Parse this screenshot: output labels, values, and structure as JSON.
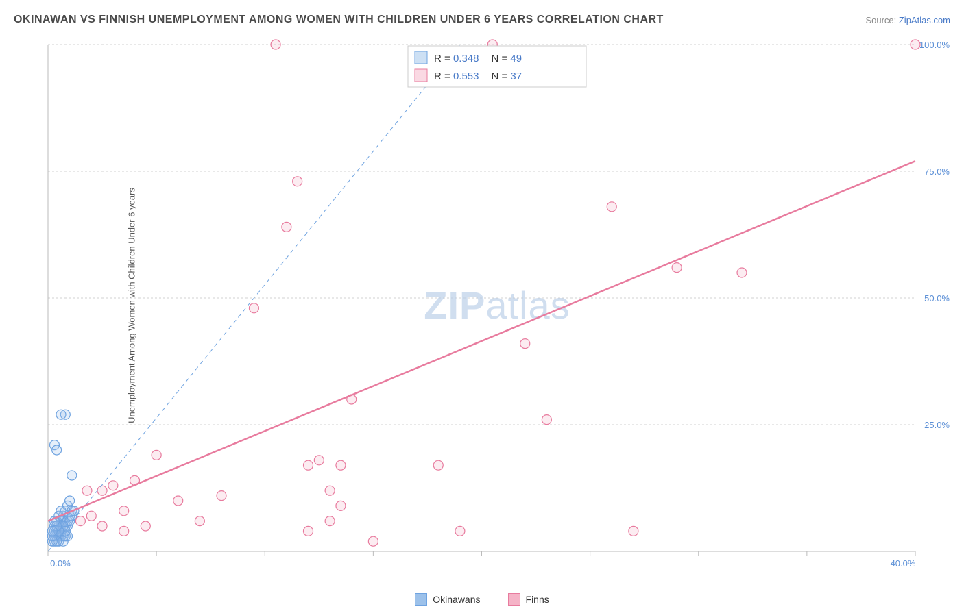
{
  "title": "OKINAWAN VS FINNISH UNEMPLOYMENT AMONG WOMEN WITH CHILDREN UNDER 6 YEARS CORRELATION CHART",
  "source_text": "Source: ",
  "source_link": "ZipAtlas.com",
  "y_axis_label": "Unemployment Among Women with Children Under 6 years",
  "watermark": {
    "bold": "ZIP",
    "rest": "atlas"
  },
  "chart": {
    "type": "scatter",
    "xlim": [
      0,
      40
    ],
    "ylim": [
      0,
      100
    ],
    "x_ticks": [
      0,
      5,
      10,
      15,
      20,
      25,
      30,
      35,
      40
    ],
    "y_ticks": [
      25,
      50,
      75,
      100
    ],
    "x_tick_label_format": "{v}.0%",
    "y_tick_label_format": "{v}.0%",
    "grid_color": "#d0d0d0",
    "axis_color": "#bbbbbb",
    "background_color": "#ffffff",
    "marker_radius": 7,
    "marker_fill_opacity": 0.25,
    "series": [
      {
        "id": "okinawans",
        "label": "Okinawans",
        "color_stroke": "#6fa3e0",
        "color_fill": "#9cc1ea",
        "R": "0.348",
        "N": "49",
        "points": [
          [
            0.3,
            2
          ],
          [
            0.4,
            3
          ],
          [
            0.5,
            4
          ],
          [
            0.6,
            5
          ],
          [
            0.7,
            6
          ],
          [
            0.8,
            4
          ],
          [
            0.9,
            3
          ],
          [
            0.5,
            5
          ],
          [
            0.6,
            6
          ],
          [
            0.7,
            7
          ],
          [
            0.8,
            8
          ],
          [
            0.9,
            9
          ],
          [
            1.0,
            10
          ],
          [
            1.1,
            8
          ],
          [
            1.0,
            7
          ],
          [
            0.4,
            4
          ],
          [
            0.3,
            3
          ],
          [
            0.5,
            2
          ],
          [
            0.7,
            3
          ],
          [
            0.8,
            5
          ],
          [
            0.6,
            4
          ],
          [
            0.9,
            6
          ],
          [
            0.5,
            3
          ],
          [
            0.6,
            3
          ],
          [
            0.7,
            2
          ],
          [
            0.8,
            3
          ],
          [
            0.4,
            2
          ],
          [
            0.3,
            4
          ],
          [
            0.9,
            5
          ],
          [
            1.0,
            6
          ],
          [
            1.1,
            7
          ],
          [
            1.2,
            8
          ],
          [
            0.2,
            2
          ],
          [
            0.3,
            5
          ],
          [
            0.4,
            6
          ],
          [
            0.5,
            7
          ],
          [
            0.6,
            8
          ],
          [
            0.7,
            5
          ],
          [
            0.8,
            4
          ],
          [
            0.2,
            3
          ],
          [
            0.5,
            4
          ],
          [
            0.4,
            5
          ],
          [
            0.3,
            6
          ],
          [
            0.2,
            4
          ],
          [
            0.8,
            27
          ],
          [
            0.3,
            21
          ],
          [
            0.4,
            20
          ],
          [
            1.1,
            15
          ],
          [
            0.6,
            27
          ]
        ],
        "trend": {
          "style": "dashed",
          "width": 1,
          "x1": 0,
          "y1": 0,
          "x2": 19,
          "y2": 100
        }
      },
      {
        "id": "finns",
        "label": "Finns",
        "color_stroke": "#e87b9e",
        "color_fill": "#f5b3c7",
        "R": "0.553",
        "N": "37",
        "points": [
          [
            1.5,
            6
          ],
          [
            2,
            7
          ],
          [
            2.5,
            12
          ],
          [
            3,
            13
          ],
          [
            3.5,
            8
          ],
          [
            4,
            14
          ],
          [
            5,
            19
          ],
          [
            6,
            10
          ],
          [
            7,
            6
          ],
          [
            8,
            11
          ],
          [
            10.5,
            100
          ],
          [
            9.5,
            48
          ],
          [
            11,
            64
          ],
          [
            11.5,
            73
          ],
          [
            13,
            12
          ],
          [
            12,
            17
          ],
          [
            13.5,
            17
          ],
          [
            14,
            30
          ],
          [
            12.5,
            18
          ],
          [
            13,
            6
          ],
          [
            13.5,
            9
          ],
          [
            15,
            2
          ],
          [
            18,
            17
          ],
          [
            19,
            4
          ],
          [
            20.5,
            100
          ],
          [
            22,
            41
          ],
          [
            23,
            26
          ],
          [
            27,
            4
          ],
          [
            26,
            68
          ],
          [
            29,
            56
          ],
          [
            32,
            55
          ],
          [
            40,
            100
          ],
          [
            4.5,
            5
          ],
          [
            3.5,
            4
          ],
          [
            2.5,
            5
          ],
          [
            1.8,
            12
          ],
          [
            12,
            4
          ]
        ],
        "trend": {
          "style": "solid",
          "width": 2.5,
          "x1": 0,
          "y1": 6,
          "x2": 40,
          "y2": 77
        }
      }
    ]
  },
  "stats_legend": {
    "rows": [
      {
        "series": "okinawans",
        "r_label": "R =",
        "n_label": "N ="
      },
      {
        "series": "finns",
        "r_label": "R =",
        "n_label": "N ="
      }
    ]
  },
  "bottom_legend_labels": {
    "okinawans": "Okinawans",
    "finns": "Finns"
  }
}
